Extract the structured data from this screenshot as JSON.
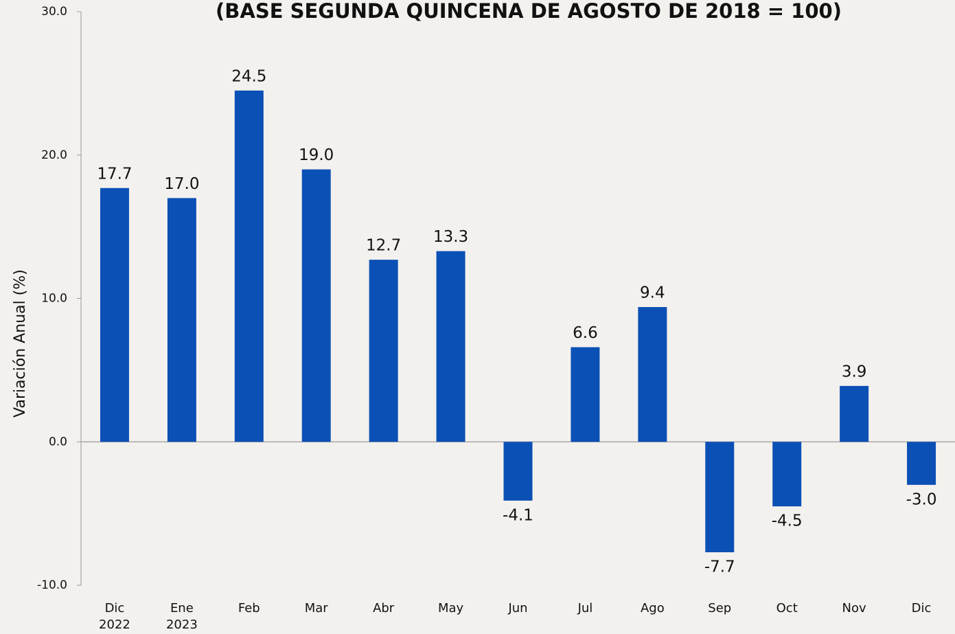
{
  "chart_data": {
    "type": "bar",
    "title": "(BASE SEGUNDA QUINCENA DE AGOSTO DE 2018 = 100)",
    "y_label": "Variación Anual  (%)",
    "categories": [
      "Dic\n2022",
      "Ene\n2023",
      "Feb",
      "Mar",
      "Abr",
      "May",
      "Jun",
      "Jul",
      "Ago",
      "Sep",
      "Oct",
      "Nov",
      "Dic"
    ],
    "values": [
      17.7,
      17.0,
      24.5,
      19.0,
      12.7,
      13.3,
      -4.1,
      6.6,
      9.4,
      -7.7,
      -4.5,
      3.9,
      -3.0
    ],
    "value_labels": [
      "17.7",
      "17.0",
      "24.5",
      "19.0",
      "12.7",
      "13.3",
      "-4.1",
      "6.6",
      "9.4",
      "-7.7",
      "-4.5",
      "3.9",
      "-3.0"
    ],
    "color": "#0b50b5",
    "ylim": [
      -10,
      30
    ],
    "yticks": [
      {
        "value": -10,
        "label": "-10.0"
      },
      {
        "value": 0,
        "label": "0.0"
      },
      {
        "value": 10,
        "label": "10.0"
      },
      {
        "value": 20,
        "label": "20.0"
      },
      {
        "value": 30,
        "label": "30.0"
      }
    ],
    "grid": false
  }
}
